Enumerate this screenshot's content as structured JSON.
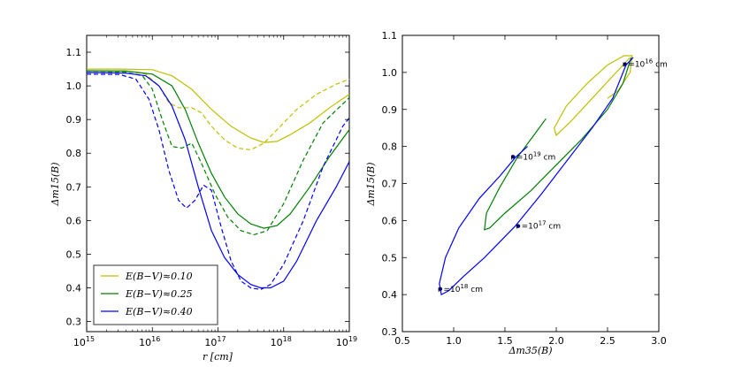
{
  "chart_data": [
    {
      "type": "line",
      "title": "",
      "xlabel": "r [cm]",
      "ylabel": "Δm15(B)",
      "xscale": "log",
      "xlim_exp": [
        15,
        19
      ],
      "ylim": [
        0.27,
        1.15
      ],
      "x_ticks": [
        {
          "base": "10",
          "exp": "15",
          "value": 15
        },
        {
          "base": "10",
          "exp": "16",
          "value": 16
        },
        {
          "base": "10",
          "exp": "17",
          "value": 17
        },
        {
          "base": "10",
          "exp": "18",
          "value": 18
        },
        {
          "base": "10",
          "exp": "19",
          "value": 19
        }
      ],
      "y_ticks": [
        "0.3",
        "0.4",
        "0.5",
        "0.6",
        "0.7",
        "0.8",
        "0.9",
        "1.0",
        "1.1"
      ],
      "legend": {
        "position": "bottom-left",
        "entries": [
          {
            "label": "E(B−V)≈0.10",
            "color": "#bfbf00"
          },
          {
            "label": "E(B−V)≈0.25",
            "color": "#007f00"
          },
          {
            "label": "E(B−V)≈0.40",
            "color": "#0000ff"
          }
        ]
      },
      "series": [
        {
          "name": "E(B−V)≈0.10 solid",
          "color": "#bfbf00",
          "dash": false,
          "points": [
            [
              15,
              1.05
            ],
            [
              15.5,
              1.05
            ],
            [
              16,
              1.048
            ],
            [
              16.3,
              1.03
            ],
            [
              16.6,
              0.99
            ],
            [
              16.9,
              0.93
            ],
            [
              17.2,
              0.88
            ],
            [
              17.5,
              0.845
            ],
            [
              17.7,
              0.832
            ],
            [
              17.9,
              0.835
            ],
            [
              18.1,
              0.855
            ],
            [
              18.4,
              0.89
            ],
            [
              18.7,
              0.935
            ],
            [
              19,
              0.975
            ]
          ]
        },
        {
          "name": "E(B−V)≈0.10 dashed",
          "color": "#bfbf00",
          "dash": true,
          "points": [
            [
              15,
              1.045
            ],
            [
              15.6,
              1.044
            ],
            [
              15.9,
              1.035
            ],
            [
              16.1,
              1.0
            ],
            [
              16.25,
              0.95
            ],
            [
              16.4,
              0.935
            ],
            [
              16.6,
              0.935
            ],
            [
              16.75,
              0.92
            ],
            [
              16.9,
              0.88
            ],
            [
              17.1,
              0.84
            ],
            [
              17.3,
              0.815
            ],
            [
              17.5,
              0.81
            ],
            [
              17.7,
              0.83
            ],
            [
              17.9,
              0.87
            ],
            [
              18.2,
              0.93
            ],
            [
              18.5,
              0.975
            ],
            [
              18.8,
              1.005
            ],
            [
              19,
              1.02
            ]
          ]
        },
        {
          "name": "E(B−V)≈0.25 solid",
          "color": "#007f00",
          "dash": false,
          "points": [
            [
              15,
              1.045
            ],
            [
              15.6,
              1.044
            ],
            [
              16,
              1.035
            ],
            [
              16.3,
              1.0
            ],
            [
              16.5,
              0.93
            ],
            [
              16.7,
              0.83
            ],
            [
              16.9,
              0.74
            ],
            [
              17.1,
              0.67
            ],
            [
              17.3,
              0.62
            ],
            [
              17.5,
              0.59
            ],
            [
              17.7,
              0.577
            ],
            [
              17.9,
              0.585
            ],
            [
              18.1,
              0.62
            ],
            [
              18.4,
              0.7
            ],
            [
              18.7,
              0.79
            ],
            [
              19,
              0.87
            ]
          ]
        },
        {
          "name": "E(B−V)≈0.25 dashed",
          "color": "#007f00",
          "dash": true,
          "points": [
            [
              15,
              1.04
            ],
            [
              15.6,
              1.04
            ],
            [
              15.85,
              1.03
            ],
            [
              16,
              0.99
            ],
            [
              16.15,
              0.9
            ],
            [
              16.3,
              0.82
            ],
            [
              16.45,
              0.815
            ],
            [
              16.6,
              0.83
            ],
            [
              16.75,
              0.77
            ],
            [
              16.95,
              0.68
            ],
            [
              17.15,
              0.61
            ],
            [
              17.35,
              0.57
            ],
            [
              17.55,
              0.558
            ],
            [
              17.75,
              0.57
            ],
            [
              18,
              0.65
            ],
            [
              18.3,
              0.78
            ],
            [
              18.6,
              0.89
            ],
            [
              19,
              0.965
            ]
          ]
        },
        {
          "name": "E(B−V)≈0.40 solid",
          "color": "#0000ff",
          "dash": false,
          "points": [
            [
              15,
              1.04
            ],
            [
              15.6,
              1.038
            ],
            [
              15.9,
              1.03
            ],
            [
              16.1,
              1.0
            ],
            [
              16.3,
              0.94
            ],
            [
              16.5,
              0.84
            ],
            [
              16.7,
              0.7
            ],
            [
              16.9,
              0.57
            ],
            [
              17.1,
              0.49
            ],
            [
              17.3,
              0.44
            ],
            [
              17.5,
              0.41
            ],
            [
              17.65,
              0.4
            ],
            [
              17.8,
              0.4
            ],
            [
              18,
              0.42
            ],
            [
              18.2,
              0.48
            ],
            [
              18.5,
              0.6
            ],
            [
              18.8,
              0.7
            ],
            [
              19,
              0.775
            ]
          ]
        },
        {
          "name": "E(B−V)≈0.40 dashed",
          "color": "#0000ff",
          "dash": true,
          "points": [
            [
              15,
              1.035
            ],
            [
              15.5,
              1.034
            ],
            [
              15.75,
              1.02
            ],
            [
              15.95,
              0.96
            ],
            [
              16.1,
              0.87
            ],
            [
              16.25,
              0.75
            ],
            [
              16.4,
              0.66
            ],
            [
              16.52,
              0.637
            ],
            [
              16.65,
              0.66
            ],
            [
              16.78,
              0.705
            ],
            [
              16.9,
              0.69
            ],
            [
              17.05,
              0.58
            ],
            [
              17.2,
              0.48
            ],
            [
              17.35,
              0.42
            ],
            [
              17.5,
              0.4
            ],
            [
              17.65,
              0.395
            ],
            [
              17.8,
              0.41
            ],
            [
              18,
              0.47
            ],
            [
              18.3,
              0.6
            ],
            [
              18.6,
              0.76
            ],
            [
              18.9,
              0.88
            ],
            [
              19,
              0.905
            ]
          ]
        }
      ]
    },
    {
      "type": "line",
      "title": "",
      "xlabel": "Δm35(B)",
      "ylabel": "Δm15(B)",
      "xlim": [
        0.5,
        3.0
      ],
      "ylim": [
        0.3,
        1.1
      ],
      "x_ticks": [
        "0.5",
        "1.0",
        "1.5",
        "2.0",
        "2.5",
        "3.0"
      ],
      "y_ticks": [
        "0.3",
        "0.4",
        "0.5",
        "0.6",
        "0.7",
        "0.8",
        "0.9",
        "1.0",
        "1.1"
      ],
      "series": [
        {
          "name": "E(B−V)≈0.10 track",
          "color": "#bfbf00",
          "points": [
            [
              2.72,
              1.04
            ],
            [
              2.55,
              0.99
            ],
            [
              2.35,
              0.93
            ],
            [
              2.15,
              0.87
            ],
            [
              2.0,
              0.83
            ],
            [
              1.98,
              0.85
            ],
            [
              2.1,
              0.91
            ],
            [
              2.3,
              0.97
            ],
            [
              2.5,
              1.02
            ],
            [
              2.66,
              1.045
            ],
            [
              2.74,
              1.045
            ],
            [
              2.72,
              1.0
            ],
            [
              2.6,
              0.95
            ],
            [
              2.5,
              0.93
            ]
          ]
        },
        {
          "name": "E(B−V)≈0.25 track",
          "color": "#007f00",
          "points": [
            [
              2.73,
              1.04
            ],
            [
              2.65,
              0.97
            ],
            [
              2.5,
              0.9
            ],
            [
              2.25,
              0.82
            ],
            [
              2.0,
              0.75
            ],
            [
              1.75,
              0.68
            ],
            [
              1.5,
              0.62
            ],
            [
              1.35,
              0.58
            ],
            [
              1.3,
              0.575
            ],
            [
              1.32,
              0.62
            ],
            [
              1.45,
              0.69
            ],
            [
              1.62,
              0.77
            ],
            [
              1.78,
              0.83
            ],
            [
              1.9,
              0.875
            ]
          ]
        },
        {
          "name": "E(B−V)≈0.40 track",
          "color": "#0000ff",
          "points": [
            [
              2.75,
              1.04
            ],
            [
              2.68,
              1.02
            ],
            [
              2.55,
              0.93
            ],
            [
              2.35,
              0.85
            ],
            [
              2.1,
              0.76
            ],
            [
              1.85,
              0.67
            ],
            [
              1.6,
              0.585
            ],
            [
              1.3,
              0.5
            ],
            [
              1.1,
              0.45
            ],
            [
              0.95,
              0.41
            ],
            [
              0.88,
              0.4
            ],
            [
              0.86,
              0.43
            ],
            [
              0.92,
              0.5
            ],
            [
              1.05,
              0.58
            ],
            [
              1.25,
              0.66
            ],
            [
              1.45,
              0.72
            ],
            [
              1.6,
              0.77
            ],
            [
              1.72,
              0.8
            ]
          ]
        }
      ],
      "annotations": [
        {
          "text": "r =10",
          "sup": "16",
          "suffix": " cm",
          "x": 2.67,
          "y": 1.022
        },
        {
          "text": "r =10",
          "sup": "19",
          "suffix": " cm",
          "x": 1.58,
          "y": 0.772
        },
        {
          "text": "r =10",
          "sup": "17",
          "suffix": " cm",
          "x": 1.63,
          "y": 0.585
        },
        {
          "text": "r =10",
          "sup": "18",
          "suffix": " cm",
          "x": 0.87,
          "y": 0.415
        }
      ]
    }
  ]
}
